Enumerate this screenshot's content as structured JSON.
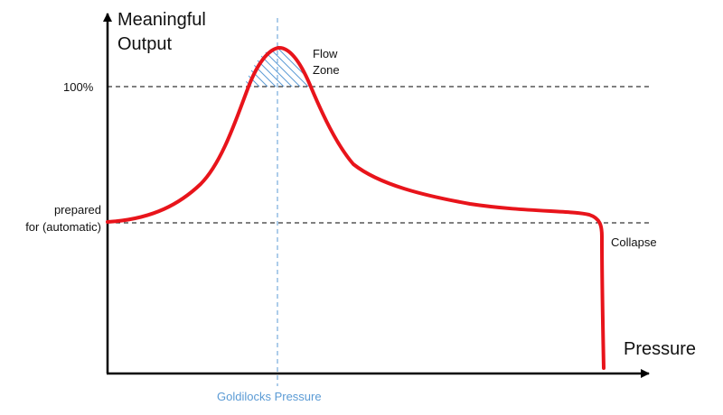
{
  "y_axis_title": [
    "Meaningful",
    "Output"
  ],
  "x_axis_title": "Pressure",
  "levels": {
    "hundred_percent": "100%",
    "prepared_line1": "prepared",
    "prepared_line2": "for (automatic)"
  },
  "annotations": {
    "flow_zone_line1": "Flow",
    "flow_zone_line2": "Zone",
    "collapse": "Collapse",
    "goldilocks": "Goldilocks Pressure"
  },
  "colors": {
    "curve": "#e8141b",
    "axis": "#000000",
    "reference_lines": "#000000",
    "goldilocks_line": "#5b9bd5",
    "flow_hatch": "#5b9bd5"
  }
}
